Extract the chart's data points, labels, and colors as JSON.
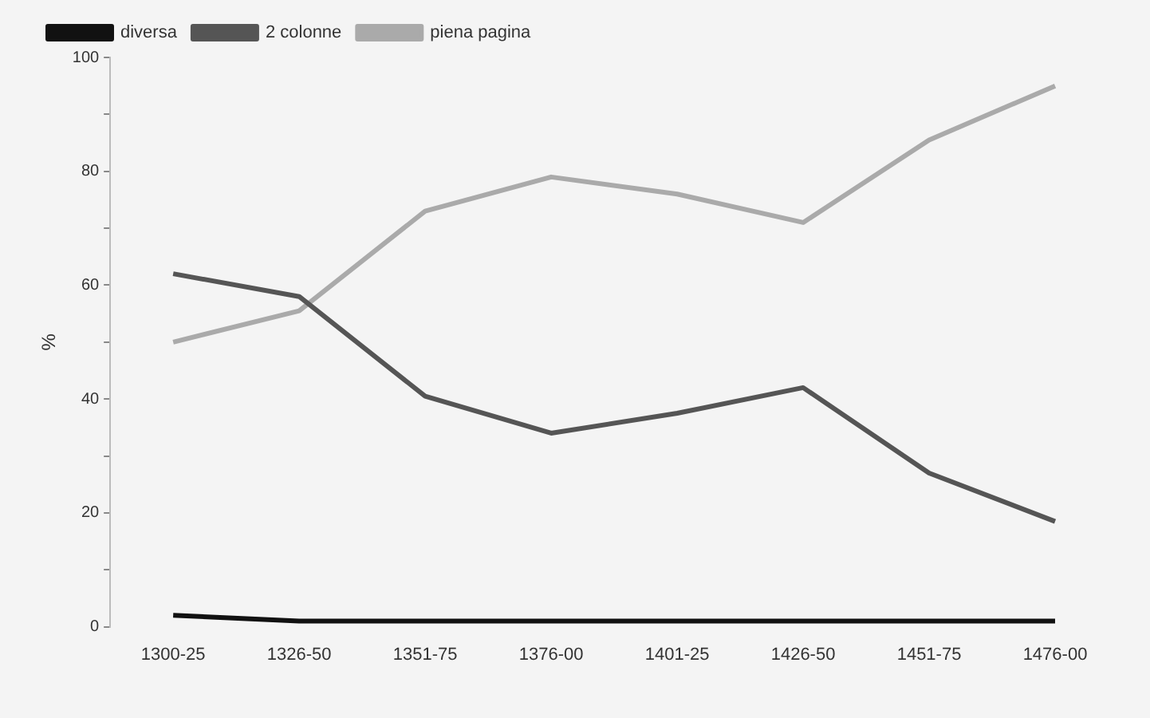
{
  "chart_data": {
    "type": "line",
    "ylabel": "%",
    "categories": [
      "1300-25",
      "1326-50",
      "1351-75",
      "1376-00",
      "1401-25",
      "1426-50",
      "1451-75",
      "1476-00"
    ],
    "series": [
      {
        "name": "diversa",
        "color": "#111111",
        "values": [
          2,
          1,
          1,
          1,
          1,
          1,
          1,
          1
        ]
      },
      {
        "name": "2 colonne",
        "color": "#555555",
        "values": [
          62,
          58,
          40.5,
          34,
          37.5,
          42,
          27,
          18.5
        ]
      },
      {
        "name": "piena pagina",
        "color": "#aaaaaa",
        "values": [
          50,
          55.5,
          73,
          79,
          76,
          71,
          85.5,
          95
        ]
      }
    ],
    "ylim": [
      0,
      100
    ],
    "yticks": [
      0,
      {
        "value": 10,
        "label": null
      },
      20,
      {
        "value": 30,
        "label": null
      },
      40,
      {
        "value": 50,
        "label": null
      },
      60,
      {
        "value": 70,
        "label": null
      },
      80,
      {
        "value": 90,
        "label": null
      },
      100
    ],
    "grid": false,
    "legend": "top left",
    "marker": "none",
    "line_style": "solid"
  }
}
